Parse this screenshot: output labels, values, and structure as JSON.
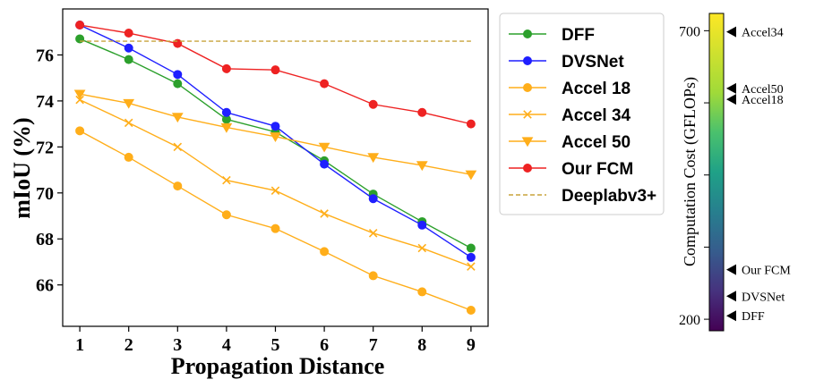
{
  "chart_data": [
    {
      "type": "line",
      "xlabel": "Propagation Distance",
      "ylabel": "mIoU (%)",
      "x": [
        1,
        2,
        3,
        4,
        5,
        6,
        7,
        8,
        9
      ],
      "xlim": [
        0.65,
        9.35
      ],
      "ylim": [
        64.2,
        78.0
      ],
      "xticks": [
        "1",
        "2",
        "3",
        "4",
        "5",
        "6",
        "7",
        "8",
        "9"
      ],
      "yticks": [
        "66",
        "68",
        "70",
        "72",
        "74",
        "76"
      ],
      "legend_position": "right",
      "series": [
        {
          "name": "DFF",
          "marker": "circle",
          "color": "#2ca02c",
          "values": [
            76.7,
            75.8,
            74.75,
            73.2,
            72.65,
            71.4,
            69.95,
            68.75,
            67.6
          ]
        },
        {
          "name": "DVSNet",
          "marker": "circle",
          "color": "#1f1fff",
          "values": [
            77.3,
            76.3,
            75.15,
            73.5,
            72.9,
            71.25,
            69.75,
            68.6,
            67.2
          ]
        },
        {
          "name": "Accel 18",
          "marker": "circle",
          "color": "#ffae1a",
          "values": [
            72.7,
            71.55,
            70.3,
            69.05,
            68.45,
            67.45,
            66.4,
            65.7,
            64.9
          ]
        },
        {
          "name": "Accel 34",
          "marker": "x",
          "color": "#ffae1a",
          "values": [
            74.05,
            73.05,
            72.0,
            70.55,
            70.1,
            69.1,
            68.25,
            67.6,
            66.8
          ]
        },
        {
          "name": "Accel 50",
          "marker": "triangle-down",
          "color": "#ffae1a",
          "values": [
            74.3,
            73.9,
            73.3,
            72.85,
            72.45,
            72.0,
            71.55,
            71.2,
            70.8
          ]
        },
        {
          "name": "Our FCM",
          "marker": "circle",
          "color": "#ee2222",
          "values": [
            77.3,
            76.95,
            76.5,
            75.4,
            75.35,
            74.75,
            73.85,
            73.5,
            73.0
          ]
        },
        {
          "name": "Deeplabv3+",
          "marker": "none",
          "style": "dashed",
          "color": "#c8a43c",
          "values": [
            76.6,
            76.6,
            76.6,
            76.6,
            76.6,
            76.6,
            76.6,
            76.6,
            76.6
          ]
        }
      ]
    },
    {
      "type": "colorbar",
      "label": "Computation Cost (GFLOPs)",
      "range": [
        180,
        730
      ],
      "ticks": [
        200,
        325,
        450,
        575,
        700
      ],
      "tick_labels": [
        "200",
        "",
        "",
        "",
        "700"
      ],
      "annotations": [
        {
          "label": "Accel34",
          "value": 698
        },
        {
          "label": "Accel50",
          "value": 600
        },
        {
          "label": "Accel18",
          "value": 581
        },
        {
          "label": "Our FCM",
          "value": 286
        },
        {
          "label": "DVSNet",
          "value": 240
        },
        {
          "label": "DFF",
          "value": 206
        }
      ]
    }
  ]
}
